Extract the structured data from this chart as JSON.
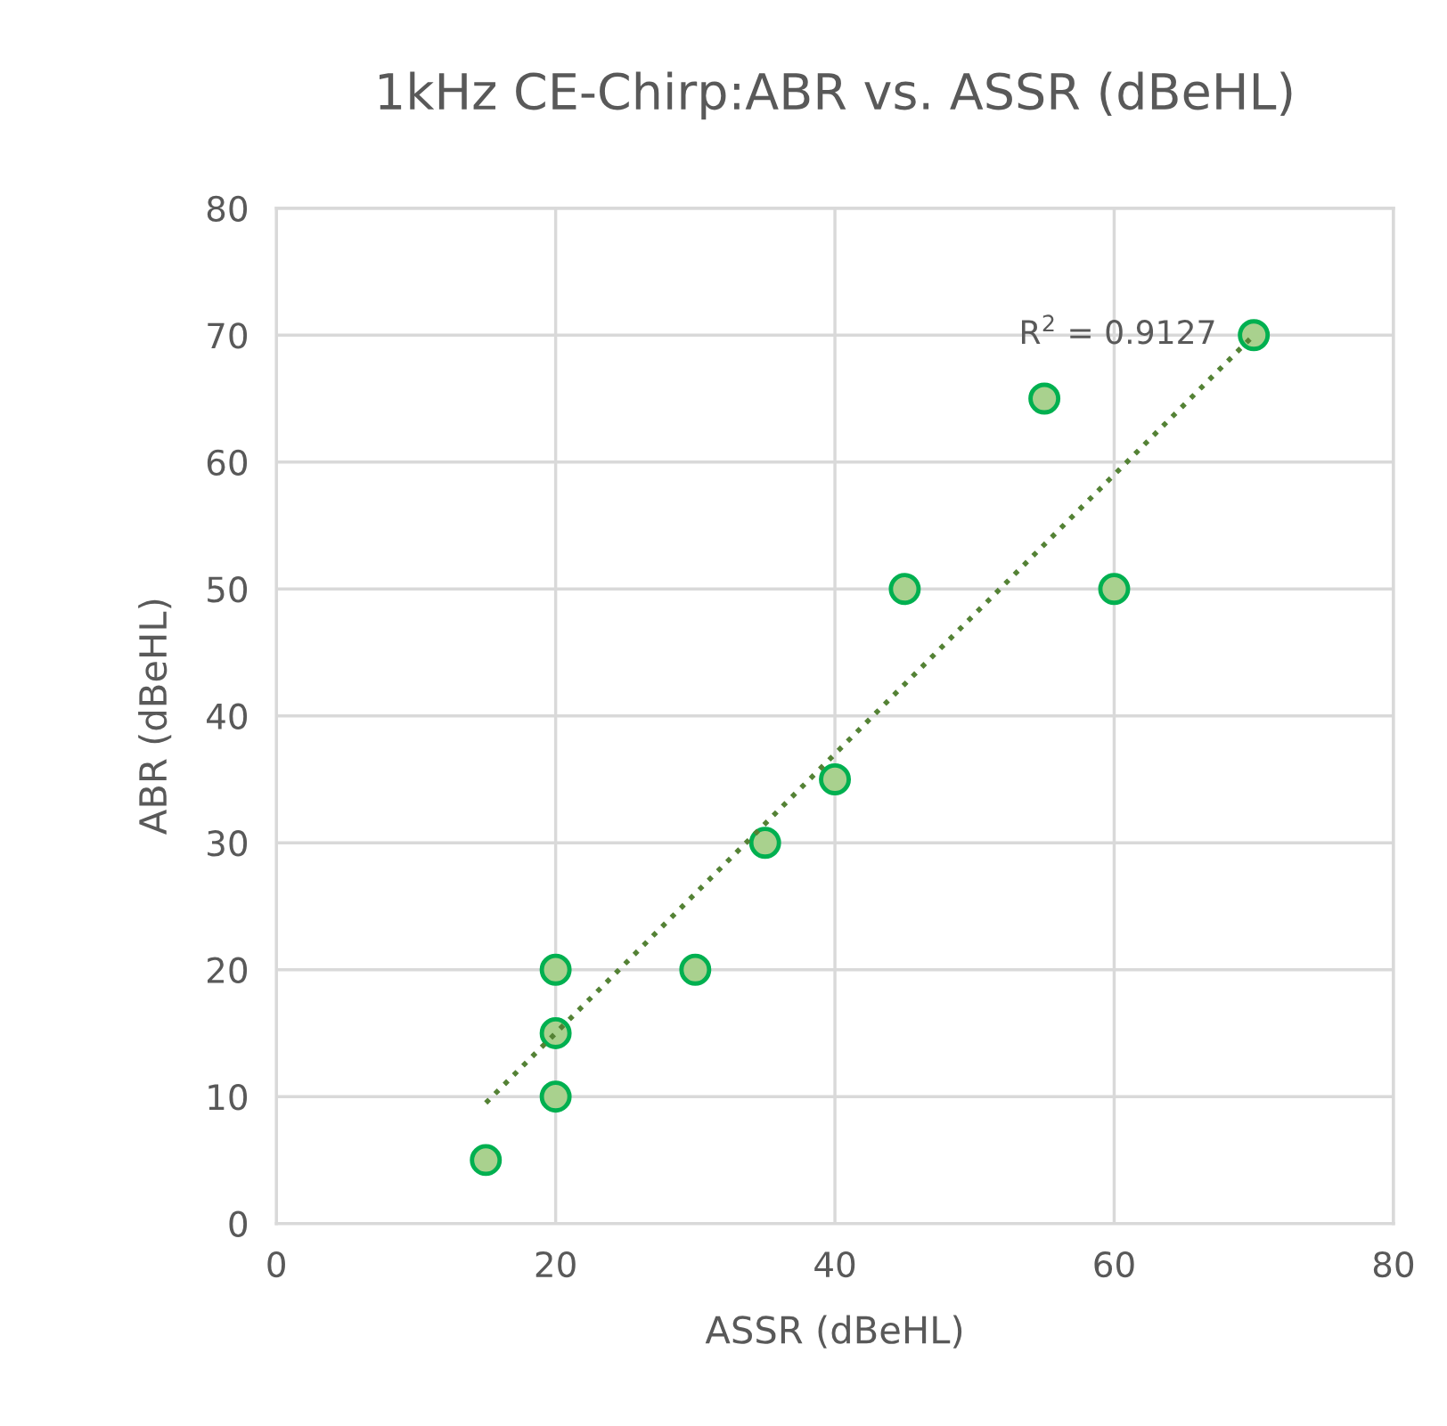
{
  "chart_data": {
    "type": "scatter",
    "title": "1kHz CE-Chirp:ABR vs. ASSR (dBeHL)",
    "xlabel": "ASSR (dBeHL)",
    "ylabel": "ABR (dBeHL)",
    "series": [
      {
        "color": "#00b050",
        "marker": "circle",
        "x": [
          15,
          20,
          20,
          20,
          30,
          35,
          40,
          45,
          55,
          60,
          70
        ],
        "values": [
          5,
          10,
          15,
          20,
          20,
          30,
          35,
          50,
          65,
          50,
          70
        ]
      },
      {
        "type": "line",
        "color": "#548235",
        "line_style": "dotted",
        "marker": "none",
        "x": [
          15,
          70
        ],
        "values": [
          9.5,
          70
        ]
      }
    ],
    "annotations": [
      {
        "text": "R$^{2}$ = 0.9127",
        "x": 70,
        "y": 70
      }
    ],
    "xlim": [
      0,
      80
    ],
    "xticks": [
      0,
      20,
      40,
      60,
      80
    ],
    "ylim": [
      0,
      80
    ],
    "yticks": [
      0,
      10,
      20,
      30,
      40,
      50,
      60,
      70,
      80
    ],
    "grid": true,
    "legend": false
  }
}
